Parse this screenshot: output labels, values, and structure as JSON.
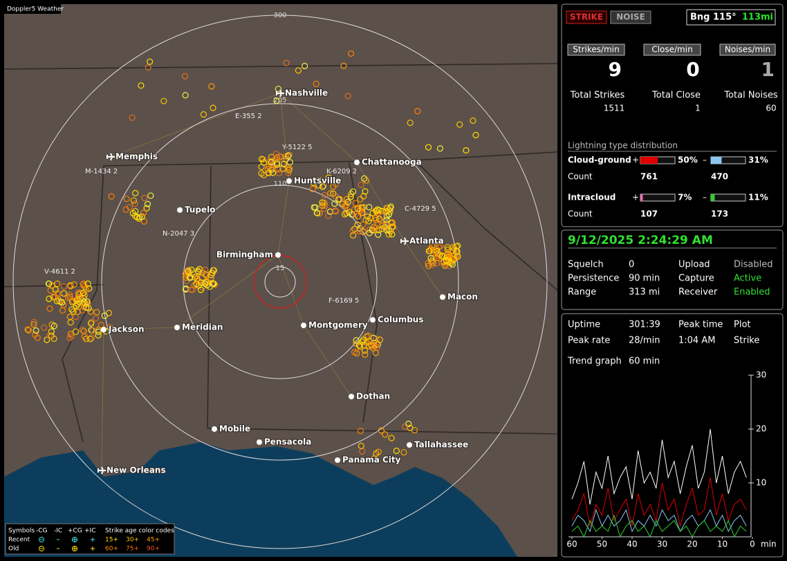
{
  "map": {
    "title": "Doppler5 Weather",
    "ring_labels": [
      "300",
      "205",
      "110",
      "15"
    ],
    "cities": [
      "Nashville",
      "Memphis",
      "Chattanooga",
      "Huntsville",
      "Tupelo",
      "Atlanta",
      "Birmingham",
      "Macon",
      "Jackson",
      "Meridian",
      "Montgomery",
      "Columbus",
      "Dothan",
      "Mobile",
      "Pensacola",
      "Tallahassee",
      "Panama City",
      "New Orleans"
    ],
    "storms": [
      "E-355 2",
      "Y-5122 5",
      "K-6209 2",
      "M-1434 2",
      "C-4729 5",
      "N-2047 3",
      "V-4611 2",
      "F-6169 5"
    ],
    "legend": {
      "header": [
        "Symbols",
        "-CG",
        "-IC",
        "+CG",
        "+IC",
        "Strike age color codes"
      ],
      "recent": {
        "label": "Recent",
        "ages": [
          "15+",
          "30+",
          "45+"
        ]
      },
      "old": {
        "label": "Old",
        "ages": [
          "60+",
          "75+",
          "90+"
        ]
      }
    }
  },
  "status": {
    "strike_button": "STRIKE",
    "noise_button": "NOISE",
    "bearing": "Bng 115°",
    "distance": "113mi"
  },
  "rates": [
    {
      "label": "Strikes/min",
      "value": 9
    },
    {
      "label": "Close/min",
      "value": 0
    },
    {
      "label": "Noises/min",
      "value": 1
    }
  ],
  "totals": [
    {
      "label": "Total Strikes",
      "value": 1511
    },
    {
      "label": "Total Close",
      "value": 1
    },
    {
      "label": "Total Noises",
      "value": 60
    }
  ],
  "distribution": {
    "title": "Lightning type distribution",
    "plus_sign": "+",
    "minus_sign": "–",
    "count_label": "Count",
    "rows": [
      {
        "label": "Cloud-ground",
        "plus": {
          "value": 50,
          "label": "50%"
        },
        "minus": {
          "value": 31,
          "label": "31%"
        },
        "plus_color": "#e00000",
        "minus_color": "#88c8f0",
        "plus_count": 761,
        "minus_count": 470
      },
      {
        "label": "Intracloud",
        "plus": {
          "value": 7,
          "label": "7%"
        },
        "minus": {
          "value": 11,
          "label": "11%"
        },
        "plus_color": "#e070a8",
        "minus_color": "#30d030",
        "plus_count": 107,
        "minus_count": 173
      }
    ]
  },
  "settings": {
    "datetime": "9/12/2025 2:24:29 AM",
    "rows": [
      [
        "Squelch",
        "0",
        "Upload",
        "Disabled"
      ],
      [
        "Persistence",
        "90 min",
        "Capture",
        "Active"
      ],
      [
        "Range",
        "313 mi",
        "Receiver",
        "Enabled"
      ]
    ]
  },
  "stats": {
    "rows": [
      [
        "Uptime",
        "301:39",
        "Peak time",
        "Plot"
      ],
      [
        "Peak rate",
        "28/min",
        "1:04 AM",
        "Strike"
      ],
      [
        "Trend graph",
        "60 min"
      ]
    ]
  },
  "chart_data": {
    "type": "line",
    "x": [
      60,
      58,
      56,
      54,
      52,
      50,
      48,
      46,
      44,
      42,
      40,
      38,
      36,
      34,
      32,
      30,
      28,
      26,
      24,
      22,
      20,
      18,
      16,
      14,
      12,
      10,
      8,
      6,
      4,
      2
    ],
    "xlim": [
      60,
      0
    ],
    "xticks": [
      60,
      50,
      40,
      30,
      20,
      10,
      0
    ],
    "x_unit": "min",
    "ylim": [
      0,
      30
    ],
    "yticks": [
      10,
      20,
      30
    ],
    "series": [
      {
        "name": "Total",
        "color": "#ffffff",
        "values": [
          7,
          10,
          14,
          6,
          12,
          9,
          15,
          8,
          11,
          13,
          7,
          16,
          10,
          12,
          9,
          18,
          11,
          14,
          8,
          13,
          17,
          9,
          12,
          20,
          10,
          15,
          8,
          12,
          14,
          11
        ]
      },
      {
        "name": "+CG",
        "color": "#e00000",
        "values": [
          3,
          5,
          8,
          2,
          6,
          4,
          9,
          3,
          5,
          7,
          2,
          8,
          4,
          6,
          3,
          10,
          5,
          7,
          2,
          6,
          9,
          4,
          5,
          11,
          4,
          8,
          3,
          6,
          7,
          5
        ]
      },
      {
        "name": "-CG",
        "color": "#88c8f0",
        "values": [
          2,
          4,
          3,
          1,
          5,
          2,
          4,
          2,
          3,
          5,
          1,
          3,
          2,
          4,
          2,
          5,
          3,
          4,
          1,
          3,
          4,
          2,
          3,
          5,
          2,
          4,
          1,
          3,
          4,
          2
        ]
      },
      {
        "name": "-IC",
        "color": "#30d030",
        "values": [
          1,
          2,
          0,
          3,
          1,
          2,
          1,
          4,
          0,
          2,
          3,
          1,
          2,
          0,
          3,
          1,
          2,
          3,
          1,
          2,
          0,
          2,
          3,
          1,
          2,
          1,
          3,
          0,
          2,
          1
        ]
      }
    ]
  }
}
